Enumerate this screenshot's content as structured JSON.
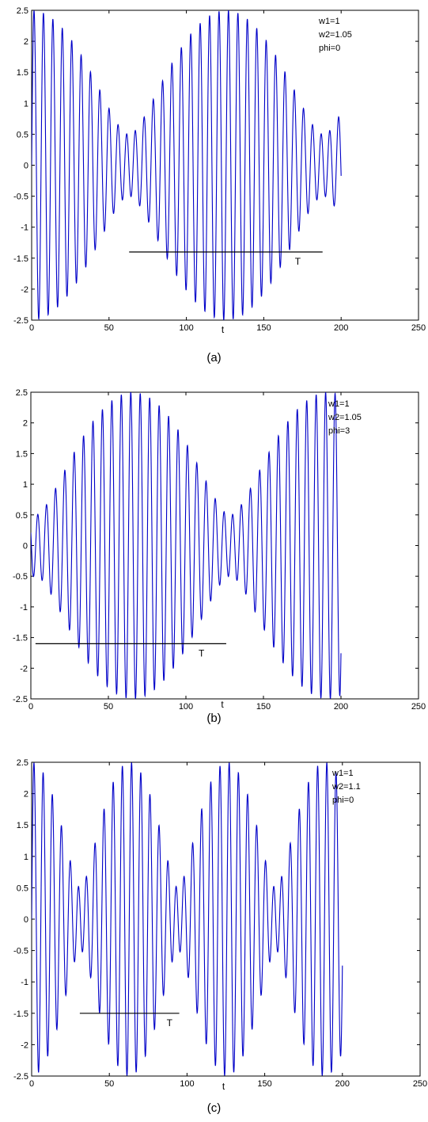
{
  "chart_data": [
    {
      "type": "line",
      "panel_label": "(a)",
      "xlabel": "t",
      "xlim": [
        0,
        250
      ],
      "ylim": [
        -2.5,
        2.5
      ],
      "x_ticks": [
        0,
        50,
        100,
        150,
        200,
        250
      ],
      "y_ticks": [
        2.5,
        2,
        1.5,
        1,
        0.5,
        0,
        -0.5,
        -1,
        -1.5,
        -2,
        -2.5
      ],
      "series": [
        {
          "function": "sin(w1*t) + 1.5*sin(w2*t + phi)",
          "t_range": [
            0,
            200
          ],
          "w1": 1,
          "w2": 1.05,
          "phi": 0,
          "color": "#0000c8"
        }
      ],
      "legend_text": [
        "w1=1",
        "w2=1.05",
        "phi=0"
      ],
      "period_marker": {
        "label": "T",
        "x_start": 63,
        "x_end": 188,
        "y": -1.4
      }
    },
    {
      "type": "line",
      "panel_label": "(b)",
      "xlabel": "t",
      "xlim": [
        0,
        250
      ],
      "ylim": [
        -2.5,
        2.5
      ],
      "x_ticks": [
        0,
        50,
        100,
        150,
        200,
        250
      ],
      "y_ticks": [
        2.5,
        2,
        1.5,
        1,
        0.5,
        0,
        -0.5,
        -1,
        -1.5,
        -2,
        -2.5
      ],
      "series": [
        {
          "function": "sin(w1*t) + 1.5*sin(w2*t + phi)",
          "t_range": [
            0,
            200
          ],
          "w1": 1,
          "w2": 1.05,
          "phi": 3,
          "color": "#0000c8"
        }
      ],
      "legend_text": [
        "w1=1",
        "w2=1.05",
        "phi=3"
      ],
      "period_marker": {
        "label": "T",
        "x_start": 3,
        "x_end": 126,
        "y": -1.6
      }
    },
    {
      "type": "line",
      "panel_label": "(c)",
      "xlabel": "t",
      "xlim": [
        0,
        250
      ],
      "ylim": [
        -2.5,
        2.5
      ],
      "x_ticks": [
        0,
        50,
        100,
        150,
        200,
        250
      ],
      "y_ticks": [
        2.5,
        2,
        1.5,
        1,
        0.5,
        0,
        -0.5,
        -1,
        -1.5,
        -2,
        -2.5
      ],
      "series": [
        {
          "function": "sin(w1*t) + 1.5*sin(w2*t + phi)",
          "t_range": [
            0,
            200
          ],
          "w1": 1,
          "w2": 1.1,
          "phi": 0,
          "color": "#0000c8"
        }
      ],
      "legend_text": [
        "w1=1",
        "w2=1.1",
        "phi=0"
      ],
      "period_marker": {
        "label": "T",
        "x_start": 31,
        "x_end": 95,
        "y": -1.5
      }
    }
  ]
}
